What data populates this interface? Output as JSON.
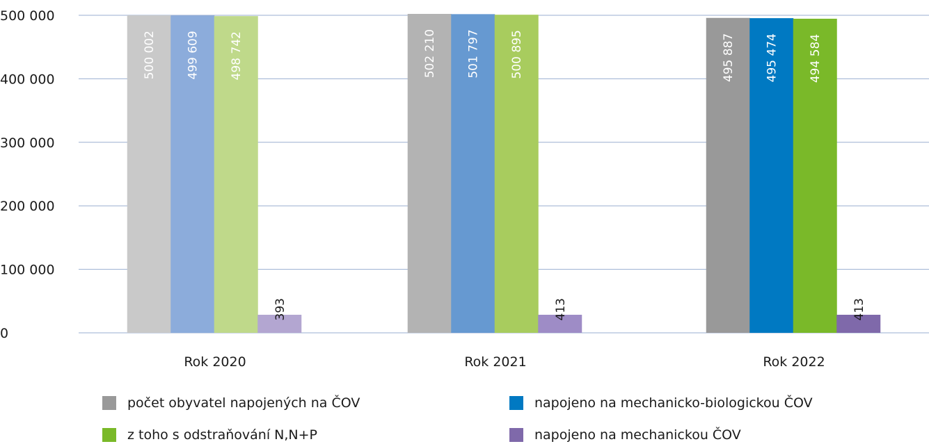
{
  "chart_data": {
    "type": "bar",
    "title": "",
    "xlabel": "",
    "ylabel": "",
    "ylim": [
      0,
      500000
    ],
    "yticks": [
      "0",
      "100 000",
      "200 000",
      "300 000",
      "400 000",
      "500 000"
    ],
    "ytick_values": [
      0,
      100000,
      200000,
      300000,
      400000,
      500000
    ],
    "grid": "horizontal",
    "legend_position": "bottom",
    "categories": [
      "Rok 2020",
      "Rok 2021",
      "Rok 2022"
    ],
    "series": [
      {
        "name": "počet obyvatel napojených na ČOV",
        "values": [
          500002,
          502210,
          495887
        ],
        "labels": [
          "500 002",
          "502 210",
          "495 887"
        ]
      },
      {
        "name": "napojeno na mechanicko-biologickou ČOV",
        "values": [
          499609,
          501797,
          495474
        ],
        "labels": [
          "499 609",
          "501 797",
          "495 474"
        ]
      },
      {
        "name": "z toho s odstraňování N,N+P",
        "values": [
          498742,
          500895,
          494584
        ],
        "labels": [
          "498 742",
          "500 895",
          "494 584"
        ]
      },
      {
        "name": "napojeno na mechanickou ČOV",
        "values": [
          393,
          413,
          413
        ],
        "labels": [
          "393",
          "413",
          "413"
        ]
      }
    ],
    "colors": [
      [
        "#c9c9c9",
        "#8cacdb",
        "#bfd98a",
        "#b3a6d1"
      ],
      [
        "#b3b3b3",
        "#6699d1",
        "#a8cc5e",
        "#9e8cc6"
      ],
      [
        "#999999",
        "#0079c2",
        "#7ab929",
        "#7f69aa"
      ]
    ],
    "legend_colors": [
      "#999999",
      "#0079c2",
      "#7ab929",
      "#7f69aa"
    ],
    "label_colors": [
      "#ffffff",
      "#ffffff",
      "#ffffff",
      "#1a1a1a"
    ]
  }
}
